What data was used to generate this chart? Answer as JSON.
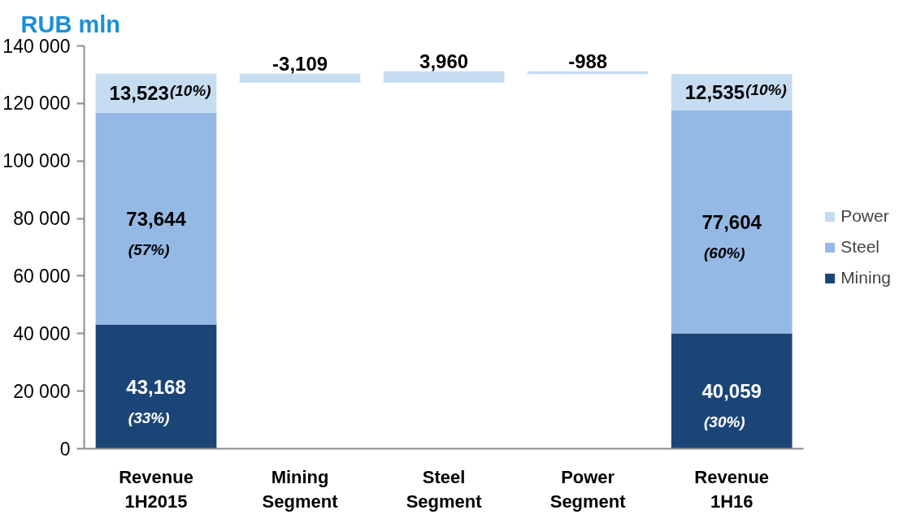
{
  "chart_data": {
    "type": "bar",
    "title": "RUB mln",
    "stacked": true,
    "categories": [
      "Revenue 1H2015",
      "Mining Segment",
      "Steel Segment",
      "Power Segment",
      "Revenue 1H16"
    ],
    "series": [
      {
        "name": "Mining",
        "color": "#1c4577",
        "values": [
          43168,
          null,
          null,
          null,
          40059
        ],
        "value_labels": [
          "43,168",
          null,
          null,
          null,
          "40,059"
        ]
      },
      {
        "name": "Steel",
        "color": "#95b9e5",
        "values": [
          73644,
          null,
          null,
          null,
          77604
        ],
        "value_labels": [
          "73,644",
          null,
          null,
          null,
          "77,604"
        ]
      },
      {
        "name": "Power",
        "color": "#c6dcf1",
        "values": [
          13523,
          null,
          null,
          null,
          12535
        ],
        "value_labels": [
          "13,523",
          null,
          null,
          null,
          "12,535"
        ]
      },
      {
        "color": "#c6dcf1",
        "base": [
          null,
          130335,
          127226,
          131186,
          null
        ],
        "values": [
          null,
          -3109,
          3960,
          -988,
          null
        ],
        "value_labels": [
          null,
          "-3,109",
          "3,960",
          "-988",
          null
        ]
      }
    ],
    "ylim": [
      0,
      140000
    ],
    "yticks": [
      0,
      {
        "value": 20000,
        "label": "20 000"
      },
      {
        "value": 40000,
        "label": "40 000"
      },
      {
        "value": 60000,
        "label": "60 000"
      },
      {
        "value": 80000,
        "label": "80 000"
      },
      {
        "value": 100000,
        "label": "100 000"
      },
      {
        "value": 120000,
        "label": "120 000"
      },
      {
        "value": 140000,
        "label": "140 000"
      }
    ],
    "legend": "right",
    "annotations": [
      "(33%)",
      "(57%)",
      "(10%)",
      "(30%)",
      "(60%)",
      "(10%)"
    ]
  }
}
